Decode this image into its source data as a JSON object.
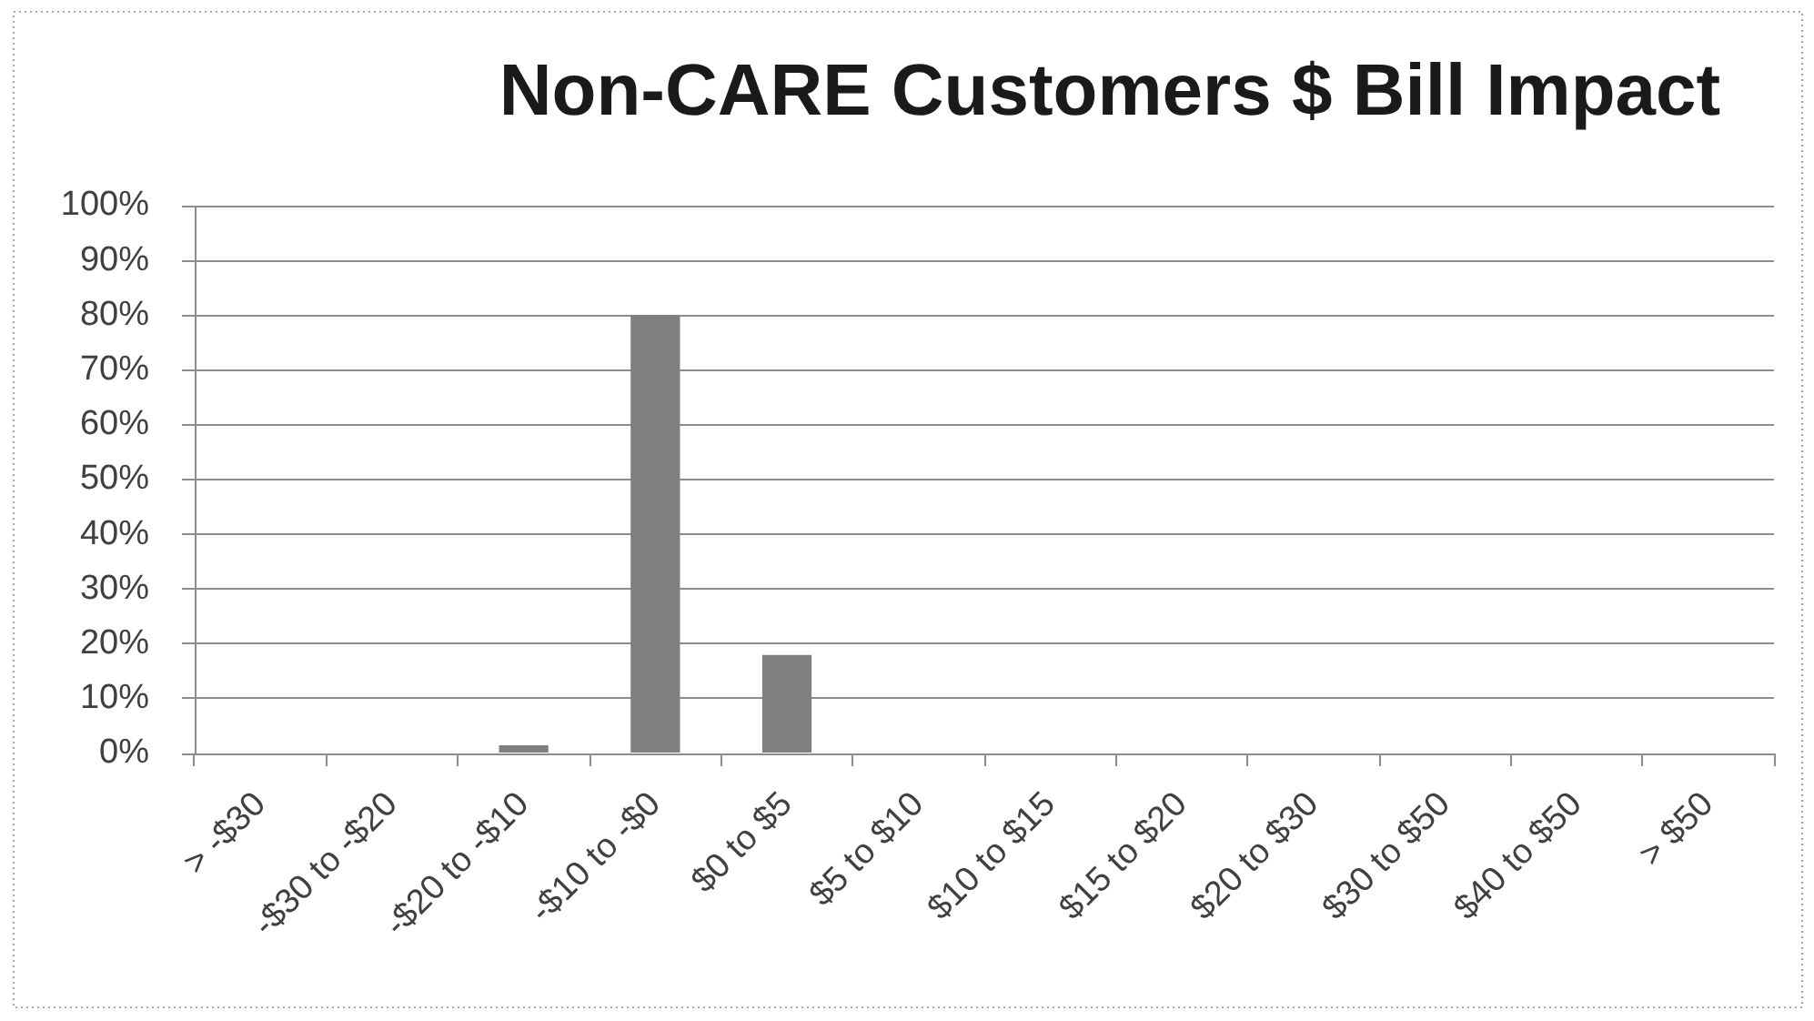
{
  "chart_data": {
    "type": "bar",
    "title": "Non-CARE Customers $ Bill Impact",
    "categories": [
      "> -$30",
      "-$30 to -$20",
      "-$20 to -$10",
      "-$10 to -$0",
      "$0 to $5",
      "$5 to $10",
      "$10 to $15",
      "$15 to $20",
      "$20 to $30",
      "$30 to $50",
      "$40 to $50",
      "> $50"
    ],
    "values": [
      0,
      0,
      1.5,
      80,
      18,
      0,
      0,
      0,
      0,
      0,
      0,
      0
    ],
    "color": "#7f7f7f",
    "ylim": [
      0,
      100
    ],
    "yticks": [
      {
        "value": 0,
        "label": "0%"
      },
      {
        "value": 10,
        "label": "10%"
      },
      {
        "value": 20,
        "label": "20%"
      },
      {
        "value": 30,
        "label": "30%"
      },
      {
        "value": 40,
        "label": "40%"
      },
      {
        "value": 50,
        "label": "50%"
      },
      {
        "value": 60,
        "label": "60%"
      },
      {
        "value": 70,
        "label": "70%"
      },
      {
        "value": 80,
        "label": "80%"
      },
      {
        "value": 90,
        "label": "90%"
      },
      {
        "value": 100,
        "label": "100%"
      }
    ],
    "grid": "y",
    "legend": false
  }
}
